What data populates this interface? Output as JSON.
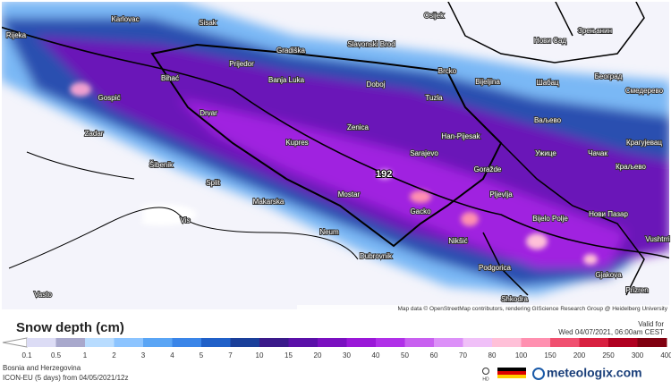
{
  "map": {
    "cities": [
      "Karlovac",
      "Sisak",
      "Osijek",
      "Rijeka",
      "Gradiška",
      "Slavonski Brod",
      "Нови Сад",
      "Зрењанин",
      "Prijedor",
      "Bihać",
      "Banja Luka",
      "Doboj",
      "Brcko",
      "Bijeljina",
      "Шабац",
      "Београд",
      "Смедерево",
      "Gospić",
      "Tuzla",
      "Drvar",
      "Zenica",
      "Ваљево",
      "Zadar",
      "Kupres",
      "Han-Pijesak",
      "Крагујевац",
      "Sarajevo",
      "Ужице",
      "Чачак",
      "Краљево",
      "Šibenik",
      "Goražde",
      "Split",
      "Pljevlja",
      "Mostar",
      "Makarska",
      "Gacko",
      "Bijelo Polje",
      "Нови Пазар",
      "Vis",
      "Neum",
      "Nikšić",
      "Vushtrri",
      "Dubrovnik",
      "Podgorica",
      "Gjakova",
      "Vasto",
      "Shkodra",
      "Prizren"
    ],
    "max_label": "192",
    "attribution": "Map data © OpenStreetMap contributors, rendering GIScience Research Group @ Heidelberg University"
  },
  "legend": {
    "title": "Snow depth (cm)",
    "valid_label": "Valid for",
    "valid_time": "Wed 04/07/2021, 06:00am CEST",
    "ticks": [
      "0.1",
      "0.5",
      "1",
      "2",
      "3",
      "4",
      "5",
      "7",
      "10",
      "15",
      "20",
      "30",
      "40",
      "50",
      "60",
      "70",
      "80",
      "100",
      "150",
      "200",
      "250",
      "300",
      "400"
    ],
    "colors": [
      "#dcdcf5",
      "#a8a8cc",
      "#b8dcff",
      "#8cc4ff",
      "#5aa5f5",
      "#3a85e8",
      "#2060c8",
      "#1a3f9a",
      "#3a1a8a",
      "#5a10a8",
      "#7a10c0",
      "#9a18d8",
      "#b030e8",
      "#c860f0",
      "#dc90f8",
      "#f0c0f8",
      "#ffc0d8",
      "#ff90b0",
      "#f05070",
      "#d82040",
      "#b00020",
      "#800010"
    ],
    "region": "Bosnia and Herzegovina",
    "model": "ICON-EU (5 days) from 04/05/2021/12z",
    "hd": "HD",
    "brand": "meteologix.com"
  }
}
